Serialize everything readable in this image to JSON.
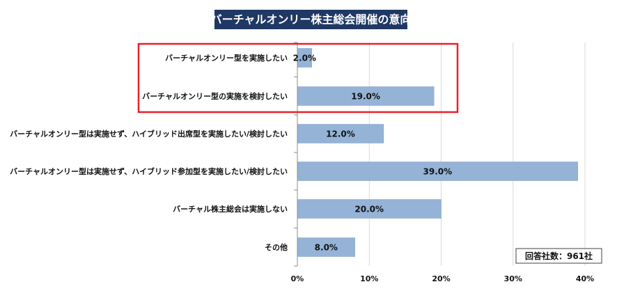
{
  "colors": {
    "bar": "#95b3d7",
    "bar_stroke": "#7f9dc4",
    "title_bg": "#1f3864",
    "title_text": "#ffffff",
    "highlight_border": "#e8202a",
    "grid": "#d9d9d9",
    "axis": "#8c8c8c"
  },
  "note": "回答社数：961社",
  "chart_data": {
    "type": "bar",
    "orientation": "horizontal",
    "title": "バーチャルオンリー株主総会開催の意向",
    "xlabel": "",
    "ylabel": "",
    "xlim": [
      0,
      40
    ],
    "grid": "vertical",
    "categories": [
      "バーチャルオンリー型を実施したい",
      "バーチャルオンリー型の実施を検討したい",
      "バーチャルオンリー型は実施せず、ハイブリッド出席型を実施したい/検討したい",
      "バーチャルオンリー型は実施せず、ハイブリッド参加型を実施したい/検討したい",
      "バーチャル株主総会は実施しない",
      "その他"
    ],
    "values": [
      2.0,
      19.0,
      12.0,
      39.0,
      20.0,
      8.0
    ],
    "value_labels": [
      "2.0%",
      "19.0%",
      "12.0%",
      "39.0%",
      "20.0%",
      "8.0%"
    ],
    "x_ticks": [
      0,
      10,
      20,
      30,
      40
    ],
    "x_tick_labels": [
      "0%",
      "10%",
      "20%",
      "30%",
      "40%"
    ],
    "highlighted_categories": [
      0,
      1
    ]
  }
}
